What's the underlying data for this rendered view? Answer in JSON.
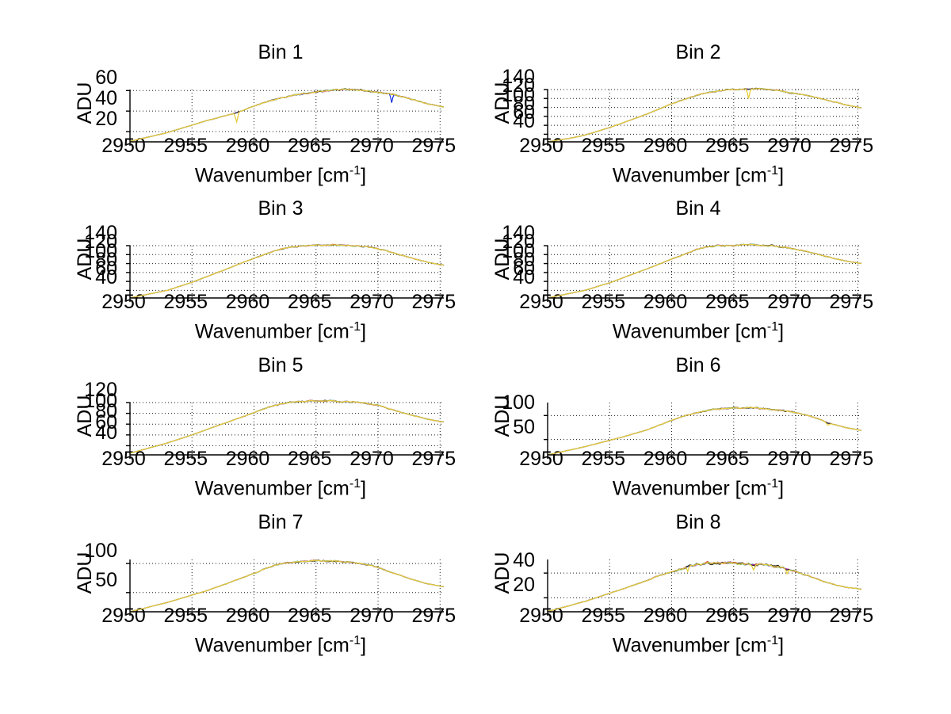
{
  "figure": {
    "background": "#ffffff",
    "ylabel": "ADU",
    "xlabel_prefix": "Wavenumber [cm",
    "xlabel_sup": "-1",
    "xlabel_suffix": "]"
  },
  "style": {
    "axis_color": "#000000",
    "grid_color": "#1a1a1a",
    "series_colors": {
      "blue": "#0020e0",
      "green": "#20a030",
      "red": "#d02818",
      "cyan": "#30c0c0",
      "magenta": "#b828b8",
      "dark": "#282828",
      "yellow": "#e6ce3c"
    },
    "draw_order": [
      "blue",
      "green",
      "red",
      "cyan",
      "magenta",
      "dark",
      "yellow"
    ]
  },
  "chart_data": [
    {
      "type": "line",
      "title": "Bin 1",
      "xlabel": "Wavenumber [cm-1]",
      "ylabel": "ADU",
      "xlim": [
        2950,
        2975.3
      ],
      "ylim": [
        10,
        61
      ],
      "xticks": [
        2950,
        2955,
        2960,
        2965,
        2970,
        2975
      ],
      "yticks": [
        20,
        40,
        60
      ],
      "grid": true,
      "noise_amp": 0.9,
      "points": [
        [
          2950,
          10.5
        ],
        [
          2953,
          19
        ],
        [
          2956,
          30
        ],
        [
          2958.5,
          38
        ],
        [
          2959,
          40
        ],
        [
          2960,
          45
        ],
        [
          2961,
          49
        ],
        [
          2962,
          52
        ],
        [
          2963,
          55
        ],
        [
          2964,
          57
        ],
        [
          2965,
          58.5
        ],
        [
          2966,
          60
        ],
        [
          2967,
          61
        ],
        [
          2968,
          61
        ],
        [
          2969,
          60
        ],
        [
          2970,
          58.5
        ],
        [
          2971,
          57
        ],
        [
          2972,
          54
        ],
        [
          2973,
          50.5
        ],
        [
          2974,
          47
        ],
        [
          2975.3,
          44
        ]
      ],
      "spikes": [
        {
          "series": "yellow",
          "x": 2958.6,
          "depth": 9,
          "width": 0.12
        },
        {
          "series": "blue",
          "x": 2971.1,
          "depth": 8,
          "width": 0.1
        }
      ]
    },
    {
      "type": "line",
      "title": "Bin 2",
      "xlabel": "Wavenumber [cm-1]",
      "ylabel": "ADU",
      "xlim": [
        2950,
        2975.3
      ],
      "ylim": [
        23,
        140
      ],
      "xticks": [
        2950,
        2955,
        2960,
        2965,
        2970,
        2975
      ],
      "yticks": [
        40,
        60,
        80,
        100,
        120,
        140
      ],
      "grid": true,
      "noise_amp": 1.5,
      "points": [
        [
          2950,
          23
        ],
        [
          2952,
          32
        ],
        [
          2953,
          38
        ],
        [
          2955,
          55
        ],
        [
          2958,
          85
        ],
        [
          2960,
          108
        ],
        [
          2961,
          118
        ],
        [
          2962,
          127
        ],
        [
          2963,
          134
        ],
        [
          2964,
          138
        ],
        [
          2965,
          140
        ],
        [
          2966,
          141
        ],
        [
          2967,
          142
        ],
        [
          2968,
          140
        ],
        [
          2969,
          136
        ],
        [
          2970,
          131
        ],
        [
          2971,
          126
        ],
        [
          2972,
          120
        ],
        [
          2973,
          113
        ],
        [
          2974,
          106
        ],
        [
          2975.3,
          99
        ]
      ],
      "spikes": [
        {
          "series": "yellow",
          "x": 2966.2,
          "depth": 21,
          "width": 0.1
        }
      ]
    },
    {
      "type": "line",
      "title": "Bin 3",
      "xlabel": "Wavenumber [cm-1]",
      "ylabel": "ADU",
      "xlim": [
        2950,
        2975.3
      ],
      "ylim": [
        23,
        140
      ],
      "xticks": [
        2950,
        2955,
        2960,
        2965,
        2970,
        2975
      ],
      "yticks": [
        40,
        60,
        80,
        100,
        120,
        140
      ],
      "grid": true,
      "noise_amp": 1.5,
      "points": [
        [
          2950,
          23
        ],
        [
          2953,
          40
        ],
        [
          2955,
          58
        ],
        [
          2958,
          90
        ],
        [
          2960,
          112
        ],
        [
          2961,
          122
        ],
        [
          2962,
          131
        ],
        [
          2963,
          137
        ],
        [
          2964,
          140
        ],
        [
          2965,
          141
        ],
        [
          2966,
          142
        ],
        [
          2967,
          141
        ],
        [
          2968,
          140
        ],
        [
          2969,
          138
        ],
        [
          2970,
          133
        ],
        [
          2971,
          126
        ],
        [
          2972,
          118
        ],
        [
          2973,
          110
        ],
        [
          2974,
          103
        ],
        [
          2975.3,
          96
        ]
      ],
      "spikes": []
    },
    {
      "type": "line",
      "title": "Bin 4",
      "xlabel": "Wavenumber [cm-1]",
      "ylabel": "ADU",
      "xlim": [
        2950,
        2975.3
      ],
      "ylim": [
        23,
        140
      ],
      "xticks": [
        2950,
        2955,
        2960,
        2965,
        2970,
        2975
      ],
      "yticks": [
        40,
        60,
        80,
        100,
        120,
        140
      ],
      "grid": true,
      "noise_amp": 1.5,
      "points": [
        [
          2950,
          23
        ],
        [
          2953,
          40
        ],
        [
          2955,
          57
        ],
        [
          2958,
          88
        ],
        [
          2960,
          110
        ],
        [
          2961,
          120
        ],
        [
          2962,
          132
        ],
        [
          2963,
          138
        ],
        [
          2963.8,
          141
        ],
        [
          2965,
          140
        ],
        [
          2966,
          143
        ],
        [
          2967,
          141
        ],
        [
          2968,
          140
        ],
        [
          2969,
          137
        ],
        [
          2970,
          132
        ],
        [
          2971,
          126
        ],
        [
          2972,
          119
        ],
        [
          2973,
          112
        ],
        [
          2974,
          106
        ],
        [
          2975.3,
          100
        ]
      ],
      "spikes": []
    },
    {
      "type": "line",
      "title": "Bin 5",
      "xlabel": "Wavenumber [cm-1]",
      "ylabel": "ADU",
      "xlim": [
        2950,
        2975.3
      ],
      "ylim": [
        23,
        120
      ],
      "xticks": [
        2950,
        2955,
        2960,
        2965,
        2970,
        2975
      ],
      "yticks": [
        40,
        60,
        80,
        100,
        120
      ],
      "grid": true,
      "noise_amp": 1.3,
      "points": [
        [
          2950,
          26
        ],
        [
          2953,
          45
        ],
        [
          2955,
          60
        ],
        [
          2958,
          85
        ],
        [
          2960,
          101
        ],
        [
          2961,
          110
        ],
        [
          2962,
          117
        ],
        [
          2963,
          121
        ],
        [
          2964,
          122
        ],
        [
          2965,
          123
        ],
        [
          2966,
          123
        ],
        [
          2967,
          122
        ],
        [
          2968,
          121
        ],
        [
          2969,
          119
        ],
        [
          2970,
          115
        ],
        [
          2971,
          108
        ],
        [
          2972,
          101
        ],
        [
          2973,
          95
        ],
        [
          2974,
          89
        ],
        [
          2975.3,
          84
        ]
      ],
      "spikes": []
    },
    {
      "type": "line",
      "title": "Bin 6",
      "xlabel": "Wavenumber [cm-1]",
      "ylabel": "ADU",
      "xlim": [
        2950,
        2975.3
      ],
      "ylim": [
        18,
        127
      ],
      "xticks": [
        2950,
        2955,
        2960,
        2965,
        2970,
        2975
      ],
      "yticks": [
        50,
        100
      ],
      "grid": true,
      "noise_amp": 1.5,
      "points": [
        [
          2950,
          18
        ],
        [
          2953,
          35
        ],
        [
          2956,
          55
        ],
        [
          2958,
          70
        ],
        [
          2960,
          90
        ],
        [
          2961,
          99
        ],
        [
          2962,
          106
        ],
        [
          2963,
          111
        ],
        [
          2964,
          114
        ],
        [
          2965,
          115
        ],
        [
          2966,
          116
        ],
        [
          2967,
          115
        ],
        [
          2968,
          113
        ],
        [
          2969,
          111
        ],
        [
          2970,
          106
        ],
        [
          2971,
          100
        ],
        [
          2972,
          92
        ],
        [
          2972.6,
          84
        ],
        [
          2973,
          82
        ],
        [
          2974,
          75
        ],
        [
          2975.3,
          69
        ]
      ],
      "spikes": [
        {
          "series": "yellow",
          "x": 2972.6,
          "depth": 4,
          "width": 0.15
        }
      ]
    },
    {
      "type": "line",
      "title": "Bin 7",
      "xlabel": "Wavenumber [cm-1]",
      "ylabel": "ADU",
      "xlim": [
        2950,
        2975.3
      ],
      "ylim": [
        17,
        107
      ],
      "xticks": [
        2950,
        2955,
        2960,
        2965,
        2970,
        2975
      ],
      "yticks": [
        50,
        100
      ],
      "grid": true,
      "noise_amp": 1.4,
      "points": [
        [
          2950,
          17
        ],
        [
          2953,
          33
        ],
        [
          2956,
          52
        ],
        [
          2958,
          67
        ],
        [
          2960,
          83
        ],
        [
          2961,
          92
        ],
        [
          2962,
          99
        ],
        [
          2963,
          102
        ],
        [
          2964,
          104
        ],
        [
          2965,
          105
        ],
        [
          2966,
          104
        ],
        [
          2967,
          104
        ],
        [
          2968,
          102
        ],
        [
          2969,
          99
        ],
        [
          2970,
          93
        ],
        [
          2971,
          85
        ],
        [
          2972,
          78
        ],
        [
          2973,
          71
        ],
        [
          2974,
          65
        ],
        [
          2975.3,
          60
        ]
      ],
      "spikes": []
    },
    {
      "type": "line",
      "title": "Bin 8",
      "xlabel": "Wavenumber [cm-1]",
      "ylabel": "ADU",
      "xlim": [
        2950,
        2975.3
      ],
      "ylim": [
        8.7,
        51
      ],
      "xticks": [
        2950,
        2955,
        2960,
        2965,
        2970,
        2975
      ],
      "yticks": [
        20,
        40
      ],
      "grid": true,
      "noise_amp": 1.1,
      "points": [
        [
          2950,
          9
        ],
        [
          2953,
          17
        ],
        [
          2956,
          27
        ],
        [
          2958,
          34
        ],
        [
          2959,
          38
        ],
        [
          2960,
          41
        ],
        [
          2961,
          44
        ],
        [
          2962,
          47
        ],
        [
          2963,
          48
        ],
        [
          2964,
          48.5
        ],
        [
          2965,
          48
        ],
        [
          2966,
          47.5
        ],
        [
          2967,
          47
        ],
        [
          2968,
          46
        ],
        [
          2969,
          44
        ],
        [
          2970,
          41
        ],
        [
          2971,
          38
        ],
        [
          2972,
          34
        ],
        [
          2973,
          31
        ],
        [
          2974,
          28.5
        ],
        [
          2975.3,
          27
        ]
      ],
      "spikes": [
        {
          "series": "yellow",
          "x": 2961.3,
          "depth": 4,
          "width": 0.1
        },
        {
          "series": "yellow",
          "x": 2966.6,
          "depth": 4,
          "width": 0.12
        },
        {
          "series": "yellow",
          "x": 2969.3,
          "depth": 3.5,
          "width": 0.1
        }
      ]
    }
  ]
}
